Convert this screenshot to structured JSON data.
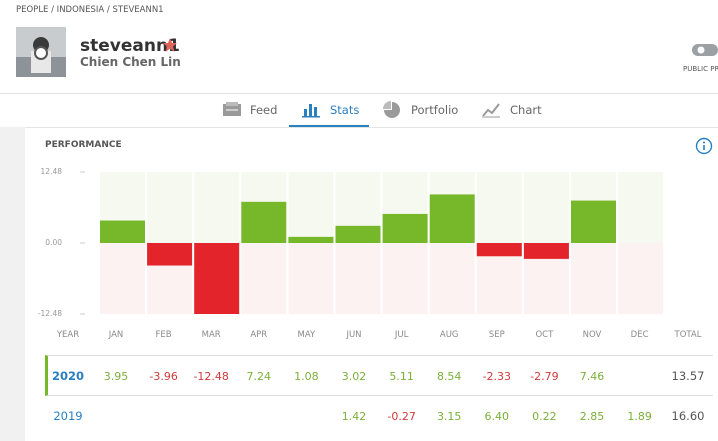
{
  "breadcrumb": "PEOPLE / INDONESIA / STEVEANN1",
  "profile": {
    "username": "steveann1",
    "full_name": "Chien Chen Lin",
    "badge": "PUBLIC PR"
  },
  "tabs": {
    "items": [
      "Feed",
      "Stats",
      "Portfolio",
      "Chart"
    ],
    "active": 1
  },
  "section_title": "PERFORMANCE",
  "chart_data": {
    "type": "bar",
    "categories": [
      "JAN",
      "FEB",
      "MAR",
      "APR",
      "MAY",
      "JUN",
      "JUL",
      "AUG",
      "SEP",
      "OCT",
      "NOV",
      "DEC"
    ],
    "values": [
      3.95,
      -3.96,
      -12.48,
      7.24,
      1.08,
      3.02,
      5.11,
      8.54,
      -2.33,
      -2.79,
      7.46,
      null
    ],
    "colors": {
      "positive": "#76b82a",
      "negative": "#e3242b"
    },
    "ylim": [
      -12.48,
      12.48
    ],
    "yticks": [
      12.48,
      {
        "value": 0,
        "label": "0.00"
      },
      -12.48
    ]
  },
  "table": {
    "year_header": "YEAR",
    "total_header": "TOTAL",
    "rows": [
      {
        "year": "2020",
        "total": "13.57"
      },
      {
        "year": "2019",
        "values": [
          null,
          null,
          null,
          null,
          null,
          "1.42",
          "-0.27",
          "3.15",
          "6.40",
          "0.22",
          "2.85",
          "1.89"
        ],
        "total": "16.60"
      }
    ]
  }
}
